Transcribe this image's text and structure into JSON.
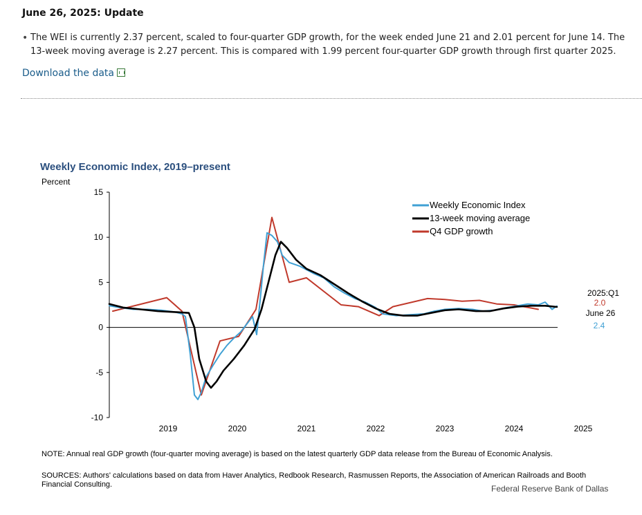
{
  "update": {
    "title": "June 26, 2025: Update",
    "bullet": "The WEI is currently 2.37 percent, scaled to four-quarter GDP growth, for the week ended June 21 and 2.01 percent for June 14. The 13-week moving average is 2.27 percent. This is compared with 1.99 percent four-quarter GDP growth through first quarter 2025.",
    "download_label": "Download the data"
  },
  "footer": {
    "note": "NOTE: Annual real GDP growth (four-quarter moving average) is based on the latest quarterly GDP data release from the Bureau of Economic Analysis.",
    "sources": "SOURCES: Authors' calculations based on data from Haver Analytics, Redbook Research, Rasmussen Reports, the Association of American Railroads and Booth Financial Consulting.",
    "credit": "Federal Reserve Bank of Dallas"
  },
  "chart_data": {
    "type": "line",
    "title": "Weekly Economic Index, 2019–present",
    "ylabel": "Percent",
    "xlabel": "",
    "ylim": [
      -10,
      15
    ],
    "xlim": [
      2018.15,
      2024.65
    ],
    "yticks": [
      "15",
      "10",
      "5",
      "0",
      "-5",
      "-10"
    ],
    "xticks": [
      "2019",
      "2020",
      "2021",
      "2022",
      "2023",
      "2024",
      "2025"
    ],
    "legend": "top-right",
    "grid": false,
    "colors": {
      "wei": "#3fa0d4",
      "ma": "#000000",
      "gdp": "#c0392b",
      "title": "#2b4f7e"
    },
    "series": [
      {
        "name": "Weekly Economic Index",
        "key": "wei",
        "points": [
          [
            2018.15,
            2.4
          ],
          [
            2018.3,
            2.2
          ],
          [
            2018.5,
            2.0
          ],
          [
            2018.7,
            2.0
          ],
          [
            2018.9,
            1.9
          ],
          [
            2019.1,
            1.7
          ],
          [
            2019.2,
            1.5
          ],
          [
            2019.25,
            1.2
          ],
          [
            2019.32,
            -3.0
          ],
          [
            2019.38,
            -7.5
          ],
          [
            2019.43,
            -8.0
          ],
          [
            2019.48,
            -7.2
          ],
          [
            2019.55,
            -5.5
          ],
          [
            2019.65,
            -4.2
          ],
          [
            2019.75,
            -3.0
          ],
          [
            2019.85,
            -2.0
          ],
          [
            2019.95,
            -1.2
          ],
          [
            2020.05,
            -0.5
          ],
          [
            2020.15,
            0.5
          ],
          [
            2020.22,
            1.2
          ],
          [
            2020.28,
            -0.8
          ],
          [
            2020.33,
            3.0
          ],
          [
            2020.38,
            7.0
          ],
          [
            2020.43,
            10.5
          ],
          [
            2020.5,
            10.2
          ],
          [
            2020.58,
            9.5
          ],
          [
            2020.65,
            8.0
          ],
          [
            2020.75,
            7.2
          ],
          [
            2020.9,
            6.8
          ],
          [
            2021.1,
            6.0
          ],
          [
            2021.25,
            5.5
          ],
          [
            2021.4,
            4.5
          ],
          [
            2021.55,
            3.8
          ],
          [
            2021.7,
            3.2
          ],
          [
            2021.85,
            2.8
          ],
          [
            2022.0,
            2.2
          ],
          [
            2022.1,
            1.5
          ],
          [
            2022.3,
            1.3
          ],
          [
            2022.5,
            1.4
          ],
          [
            2022.7,
            1.5
          ],
          [
            2022.85,
            1.8
          ],
          [
            2023.0,
            2.0
          ],
          [
            2023.2,
            2.1
          ],
          [
            2023.4,
            2.0
          ],
          [
            2023.55,
            1.8
          ],
          [
            2023.7,
            1.9
          ],
          [
            2023.9,
            2.2
          ],
          [
            2024.05,
            2.4
          ],
          [
            2024.2,
            2.6
          ],
          [
            2024.35,
            2.5
          ],
          [
            2024.45,
            2.8
          ],
          [
            2024.55,
            2.0
          ],
          [
            2024.62,
            2.37
          ]
        ]
      },
      {
        "name": "13-week moving average",
        "key": "ma",
        "points": [
          [
            2018.15,
            2.6
          ],
          [
            2018.35,
            2.2
          ],
          [
            2018.6,
            2.0
          ],
          [
            2018.85,
            1.8
          ],
          [
            2019.1,
            1.7
          ],
          [
            2019.3,
            1.6
          ],
          [
            2019.38,
            0.0
          ],
          [
            2019.45,
            -3.5
          ],
          [
            2019.55,
            -6.0
          ],
          [
            2019.62,
            -6.7
          ],
          [
            2019.7,
            -6.0
          ],
          [
            2019.8,
            -4.8
          ],
          [
            2019.95,
            -3.5
          ],
          [
            2020.1,
            -2.0
          ],
          [
            2020.25,
            -0.2
          ],
          [
            2020.35,
            2.0
          ],
          [
            2020.45,
            5.0
          ],
          [
            2020.55,
            8.0
          ],
          [
            2020.63,
            9.5
          ],
          [
            2020.72,
            8.8
          ],
          [
            2020.85,
            7.5
          ],
          [
            2021.0,
            6.5
          ],
          [
            2021.2,
            5.8
          ],
          [
            2021.4,
            4.8
          ],
          [
            2021.6,
            3.8
          ],
          [
            2021.8,
            2.9
          ],
          [
            2022.0,
            2.1
          ],
          [
            2022.2,
            1.5
          ],
          [
            2022.4,
            1.3
          ],
          [
            2022.6,
            1.3
          ],
          [
            2022.8,
            1.6
          ],
          [
            2023.0,
            1.9
          ],
          [
            2023.2,
            2.0
          ],
          [
            2023.45,
            1.8
          ],
          [
            2023.65,
            1.8
          ],
          [
            2023.85,
            2.1
          ],
          [
            2024.05,
            2.3
          ],
          [
            2024.25,
            2.4
          ],
          [
            2024.45,
            2.4
          ],
          [
            2024.62,
            2.27
          ]
        ]
      },
      {
        "name": "Q4 GDP growth",
        "key": "gdp",
        "points": [
          [
            2018.2,
            1.8
          ],
          [
            2018.98,
            3.3
          ],
          [
            2019.2,
            1.8
          ],
          [
            2019.48,
            -7.5
          ],
          [
            2019.75,
            -1.5
          ],
          [
            2020.02,
            -1.0
          ],
          [
            2020.27,
            2.0
          ],
          [
            2020.5,
            12.2
          ],
          [
            2020.75,
            5.0
          ],
          [
            2021.0,
            5.5
          ],
          [
            2021.5,
            2.5
          ],
          [
            2021.75,
            2.3
          ],
          [
            2022.05,
            1.3
          ],
          [
            2022.25,
            2.3
          ],
          [
            2022.75,
            3.2
          ],
          [
            2023.0,
            3.1
          ],
          [
            2023.25,
            2.9
          ],
          [
            2023.5,
            3.0
          ],
          [
            2023.75,
            2.6
          ],
          [
            2024.0,
            2.5
          ],
          [
            2024.35,
            2.0
          ]
        ]
      }
    ],
    "annotations": {
      "gdp_period": "2025:Q1",
      "gdp_value": "2.0",
      "wei_date": "June 26",
      "wei_value": "2.4"
    }
  }
}
